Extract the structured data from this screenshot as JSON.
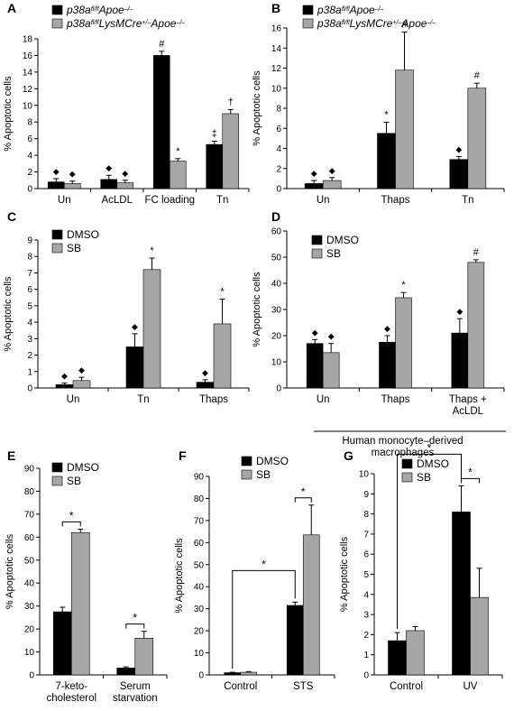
{
  "colors": {
    "series1": "#000000",
    "series2": "#a6a6a6",
    "axis": "#000000"
  },
  "chart_data": [
    {
      "panel": "A",
      "type": "bar",
      "categories": [
        "Un",
        "AcLDL",
        "FC loading",
        "Tn"
      ],
      "ylabel": "% Apoptotic cells",
      "ylim": [
        0,
        18
      ],
      "yticks": [
        0,
        2,
        4,
        6,
        8,
        10,
        12,
        14,
        16,
        18
      ],
      "legend": [
        {
          "italic": "p38a",
          "sup": "fl/fl",
          "rest": "Apoe",
          "sup2": "–/–"
        },
        {
          "italic": "p38a",
          "sup": "fl/fl",
          "rest": "LysMCre",
          "sup2": "+/–",
          "rest2": "Apoe",
          "sup3": "–/–"
        }
      ],
      "series": [
        {
          "values": [
            0.8,
            1.1,
            16.0,
            5.3
          ],
          "errors": [
            0.4,
            0.5,
            0.5,
            0.4
          ],
          "marks": [
            "◆",
            "◆",
            "#",
            "‡"
          ]
        },
        {
          "values": [
            0.6,
            0.7,
            3.3,
            9.0
          ],
          "errors": [
            0.3,
            0.3,
            0.3,
            0.5
          ],
          "marks": [
            "◆",
            "◆",
            "*",
            "†"
          ]
        }
      ]
    },
    {
      "panel": "B",
      "type": "bar",
      "categories": [
        "Un",
        "Thaps",
        "Tn"
      ],
      "ylabel": "% Apoptotic cells",
      "ylim": [
        0,
        16
      ],
      "yticks": [
        0,
        2,
        4,
        6,
        8,
        10,
        12,
        14,
        16
      ],
      "legend": [
        {
          "italic": "p38a",
          "sup": "fl/fl",
          "rest": "Apoe",
          "sup2": "–/–"
        },
        {
          "italic": "p38a",
          "sup": "fl/fl",
          "rest": "LysMCre",
          "sup2": "+/–",
          "rest2": "Apoe",
          "sup3": "–/–"
        }
      ],
      "series": [
        {
          "values": [
            0.5,
            5.5,
            2.9
          ],
          "errors": [
            0.3,
            1.1,
            0.3
          ],
          "marks": [
            "◆",
            "*",
            "◆"
          ]
        },
        {
          "values": [
            0.8,
            11.8,
            10.0
          ],
          "errors": [
            0.3,
            3.8,
            0.5
          ],
          "marks": [
            "◆",
            "#",
            "#"
          ]
        }
      ]
    },
    {
      "panel": "C",
      "type": "bar",
      "categories": [
        "Un",
        "Tn",
        "Thaps"
      ],
      "ylabel": "% Apoptotic cells",
      "ylim": [
        0,
        9
      ],
      "yticks": [
        0,
        1,
        2,
        3,
        4,
        5,
        6,
        7,
        8,
        9
      ],
      "legend": [
        "DMSO",
        "SB"
      ],
      "series": [
        {
          "name": "DMSO",
          "values": [
            0.2,
            2.5,
            0.35
          ],
          "errors": [
            0.1,
            0.8,
            0.15
          ],
          "marks": [
            "◆",
            "◆",
            "◆"
          ]
        },
        {
          "name": "SB",
          "values": [
            0.45,
            7.2,
            3.9
          ],
          "errors": [
            0.2,
            0.7,
            1.5
          ],
          "marks": [
            "◆",
            "*",
            "*"
          ]
        }
      ]
    },
    {
      "panel": "D",
      "type": "bar",
      "categories": [
        "Un",
        "Thaps",
        "Thaps +\nAcLDL"
      ],
      "ylabel": "% Apoptotic cells",
      "ylim": [
        0,
        60
      ],
      "yticks": [
        0,
        10,
        20,
        30,
        40,
        50,
        60
      ],
      "legend": [
        "DMSO",
        "SB"
      ],
      "footnote": "Human monocyte–derived\nmacrophages",
      "series": [
        {
          "name": "DMSO",
          "values": [
            17,
            17.5,
            21
          ],
          "errors": [
            1.5,
            2.5,
            5.5
          ],
          "marks": [
            "◆",
            "◆",
            "◆"
          ]
        },
        {
          "name": "SB",
          "values": [
            13.5,
            34.5,
            48
          ],
          "errors": [
            3.5,
            2,
            1
          ],
          "marks": [
            "◆",
            "*",
            "#"
          ]
        }
      ]
    },
    {
      "panel": "E",
      "type": "bar",
      "categories": [
        "7-keto-\ncholesterol",
        "Serum\nstarvation"
      ],
      "ylabel": "% Apoptotic cells",
      "ylim": [
        0,
        90
      ],
      "yticks": [
        0,
        10,
        20,
        30,
        40,
        50,
        60,
        70,
        80,
        90
      ],
      "legend": [
        "DMSO",
        "SB"
      ],
      "series": [
        {
          "name": "DMSO",
          "values": [
            27.5,
            3
          ],
          "errors": [
            2,
            0.5
          ]
        },
        {
          "name": "SB",
          "values": [
            62,
            16
          ],
          "errors": [
            1.5,
            3
          ]
        }
      ],
      "significance": [
        {
          "label": "*",
          "type": "within",
          "group": 0
        },
        {
          "label": "*",
          "type": "within",
          "group": 1
        }
      ]
    },
    {
      "panel": "F",
      "type": "bar",
      "categories": [
        "Control",
        "STS"
      ],
      "ylabel": "% Apoptotic cells",
      "ylim": [
        0,
        90
      ],
      "yticks": [
        0,
        10,
        20,
        30,
        40,
        50,
        60,
        70,
        80,
        90
      ],
      "legend": [
        "DMSO",
        "SB"
      ],
      "series": [
        {
          "name": "DMSO",
          "values": [
            1,
            31.5
          ],
          "errors": [
            0.2,
            1.5
          ]
        },
        {
          "name": "SB",
          "values": [
            1.2,
            63.5
          ],
          "errors": [
            0.3,
            13.5
          ]
        }
      ],
      "significance": [
        {
          "label": "*",
          "type": "within",
          "group": 1
        },
        {
          "label": "*",
          "type": "across",
          "from": [
            0,
            0
          ],
          "to": [
            1,
            0
          ]
        }
      ]
    },
    {
      "panel": "G",
      "type": "bar",
      "categories": [
        "Control",
        "UV"
      ],
      "ylabel": "% Apoptotic cells",
      "ylim": [
        0,
        10
      ],
      "yticks": [
        0,
        1,
        2,
        3,
        4,
        5,
        6,
        7,
        8,
        9,
        10
      ],
      "legend": [
        "DMSO",
        "SB"
      ],
      "series": [
        {
          "name": "DMSO",
          "values": [
            1.7,
            8.1
          ],
          "errors": [
            0.4,
            1.3
          ]
        },
        {
          "name": "SB",
          "values": [
            2.2,
            3.85
          ],
          "errors": [
            0.2,
            1.45
          ]
        }
      ],
      "significance": [
        {
          "label": "*",
          "type": "within",
          "group": 1
        },
        {
          "label": "*",
          "type": "across",
          "from": [
            0,
            0
          ],
          "to": [
            1,
            0
          ]
        }
      ]
    }
  ]
}
